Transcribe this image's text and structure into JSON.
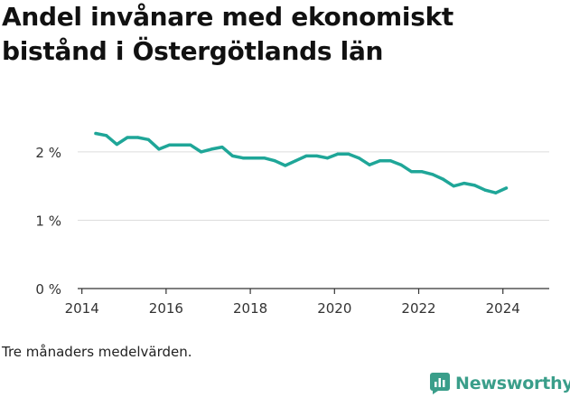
{
  "title": "Andel invånare med ekonomiskt bistånd i Östergötlands län",
  "note": "Tre månaders medelvärden.",
  "brand": {
    "name": "Newsworthy",
    "icon": "bar-chart-logo-icon",
    "color": "#3a9e8a"
  },
  "chart_data": {
    "type": "line",
    "color": "#1fa698",
    "grid": true,
    "xlim": [
      2013.9,
      2025.1
    ],
    "ylim": [
      0,
      2.7
    ],
    "x_ticks": [
      2014,
      2016,
      2018,
      2020,
      2022,
      2024
    ],
    "x_tick_labels": [
      "2014",
      "2016",
      "2018",
      "2020",
      "2022",
      "2024"
    ],
    "y_ticks": [
      0,
      1,
      2
    ],
    "y_tick_labels": [
      "0 %",
      "1 %",
      "2 %"
    ],
    "series": [
      {
        "x": [
          2014.33,
          2014.58,
          2014.83,
          2015.08,
          2015.33,
          2015.58,
          2015.83,
          2016.08,
          2016.33,
          2016.58,
          2016.83,
          2017.08,
          2017.33,
          2017.58,
          2017.83,
          2018.08,
          2018.33,
          2018.58,
          2018.83,
          2019.08,
          2019.33,
          2019.58,
          2019.83,
          2020.08,
          2020.33,
          2020.58,
          2020.83,
          2021.08,
          2021.33,
          2021.58,
          2021.83,
          2022.08,
          2022.33,
          2022.58,
          2022.83,
          2023.08,
          2023.33,
          2023.58,
          2023.83,
          2024.08
        ],
        "values": [
          2.27,
          2.24,
          2.11,
          2.21,
          2.21,
          2.18,
          2.04,
          2.1,
          2.1,
          2.1,
          2.0,
          2.04,
          2.07,
          1.94,
          1.91,
          1.91,
          1.91,
          1.87,
          1.8,
          1.87,
          1.94,
          1.94,
          1.91,
          1.97,
          1.97,
          1.91,
          1.81,
          1.87,
          1.87,
          1.81,
          1.71,
          1.71,
          1.67,
          1.6,
          1.5,
          1.54,
          1.51,
          1.44,
          1.4,
          1.47
        ]
      }
    ]
  }
}
